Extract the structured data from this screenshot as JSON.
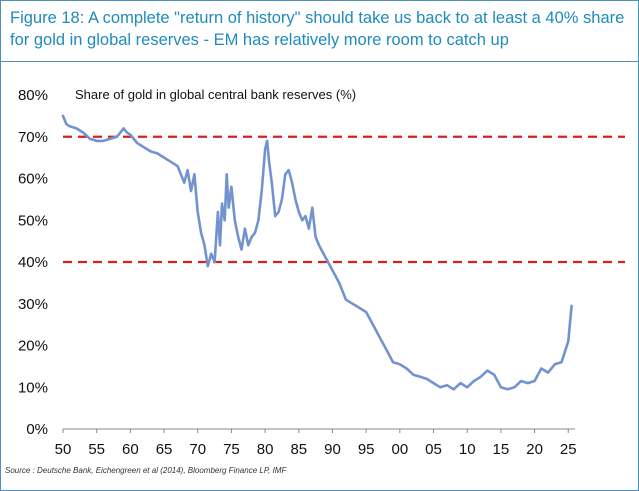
{
  "header": {
    "title": "Figure 18: A complete \"return of history\" should take us back to at least a 40% share for gold in global reserves - EM has relatively more room to catch up"
  },
  "source": "Source : Deutsche Bank, Eichengreen et al (2014), Bloomberg Finance LP, IMF",
  "colors": {
    "line": "#7393d0",
    "reference": "#d42222",
    "title": "#1f8bbd",
    "border": "#4f8fb8"
  },
  "chart_data": {
    "type": "line",
    "title": "Share of gold in global central bank reserves (%)",
    "xlabel": "",
    "ylabel": "",
    "xlim": [
      1950,
      2026
    ],
    "ylim": [
      0,
      80
    ],
    "x_ticks": [
      "50",
      "55",
      "60",
      "65",
      "70",
      "75",
      "80",
      "85",
      "90",
      "95",
      "00",
      "05",
      "10",
      "15",
      "20",
      "25"
    ],
    "y_ticks": [
      "0%",
      "10%",
      "20%",
      "30%",
      "40%",
      "50%",
      "60%",
      "70%",
      "80%"
    ],
    "reference_lines": [
      70,
      40
    ],
    "grid": false,
    "series": [
      {
        "x": [
          1950,
          1950.5,
          1951,
          1952,
          1953,
          1954,
          1955,
          1956,
          1957,
          1958,
          1958.5,
          1959,
          1959.5,
          1960,
          1961,
          1962,
          1963,
          1964,
          1965,
          1966,
          1967,
          1968,
          1968.5,
          1969,
          1969.5,
          1970,
          1970.5,
          1971,
          1971.5,
          1972,
          1972.5,
          1973,
          1973.3,
          1973.6,
          1974,
          1974.3,
          1974.6,
          1975,
          1975.5,
          1976,
          1976.5,
          1977,
          1977.5,
          1978,
          1978.5,
          1979,
          1979.5,
          1980,
          1980.3,
          1980.6,
          1981,
          1981.5,
          1982,
          1982.5,
          1983,
          1983.5,
          1984,
          1984.5,
          1985,
          1985.5,
          1986,
          1986.5,
          1987,
          1987.5,
          1988,
          1989,
          1990,
          1991,
          1992,
          1993,
          1994,
          1995,
          1996,
          1997,
          1998,
          1999,
          2000,
          2001,
          2002,
          2003,
          2004,
          2005,
          2006,
          2007,
          2008,
          2009,
          2010,
          2011,
          2012,
          2013,
          2014,
          2015,
          2016,
          2017,
          2018,
          2019,
          2020,
          2021,
          2022,
          2023,
          2024,
          2025,
          2025.5
        ],
        "y": [
          75,
          73,
          72.5,
          72,
          71,
          69.5,
          69,
          69,
          69.5,
          70,
          71,
          72,
          71,
          70.5,
          68.5,
          67.5,
          66.5,
          66,
          65,
          64,
          63,
          59,
          62,
          57,
          61,
          52,
          47,
          44,
          39,
          42,
          40,
          52,
          44,
          54,
          50,
          61,
          53,
          58,
          50,
          46,
          43,
          48,
          44,
          46,
          47,
          50,
          57,
          67,
          69,
          64,
          59,
          51,
          52,
          55,
          61,
          62,
          59,
          55,
          52,
          50,
          51,
          48,
          53,
          46,
          44,
          41,
          38,
          35,
          31,
          30,
          29,
          28,
          25,
          22,
          19,
          16,
          15.5,
          14.5,
          13,
          12.5,
          12,
          11,
          10,
          10.5,
          9.5,
          11,
          10,
          11.5,
          12.5,
          14,
          13,
          10,
          9.5,
          10,
          11.5,
          11,
          11.5,
          14.5,
          13.5,
          15.5,
          16,
          21,
          29.5
        ]
      }
    ]
  }
}
